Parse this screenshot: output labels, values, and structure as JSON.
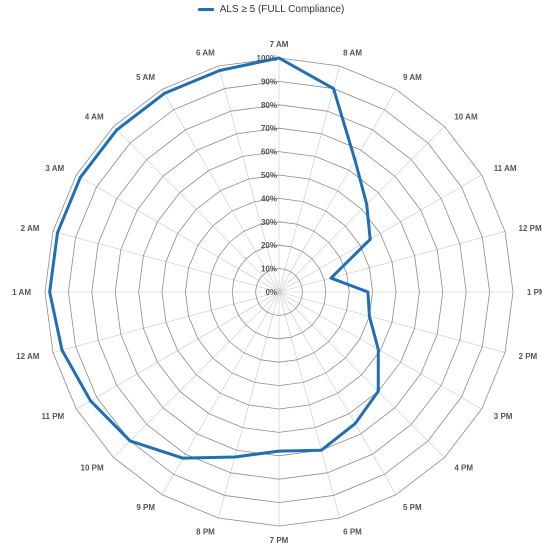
{
  "chart_data": {
    "type": "radar",
    "title": "",
    "legend_position": "top",
    "categories": [
      "7 AM",
      "8 AM",
      "9 AM",
      "10 AM",
      "11 AM",
      "12 PM",
      "1 PM",
      "2 PM",
      "3 PM",
      "4 PM",
      "5 PM",
      "6 PM",
      "7 PM",
      "8 PM",
      "9 PM",
      "10 PM",
      "11 PM",
      "12 AM",
      "1 AM",
      "2 AM",
      "3 AM",
      "4 AM",
      "5 AM",
      "6 AM"
    ],
    "series": [
      {
        "name": "ALS ≥ 5 (FULL Compliance)",
        "color": "#1f6fb4",
        "values": [
          100,
          90,
          65,
          53,
          45,
          23,
          38,
          40,
          49,
          60,
          65,
          70,
          68,
          73,
          82,
          90,
          93,
          96,
          98,
          98,
          98,
          98,
          98,
          98
        ]
      }
    ],
    "rlim": [
      0,
      100
    ],
    "tick_labels": [
      "0%",
      "10%",
      "20%",
      "30%",
      "40%",
      "50%",
      "60%",
      "70%",
      "80%",
      "90%",
      "100%"
    ],
    "grid": true
  }
}
